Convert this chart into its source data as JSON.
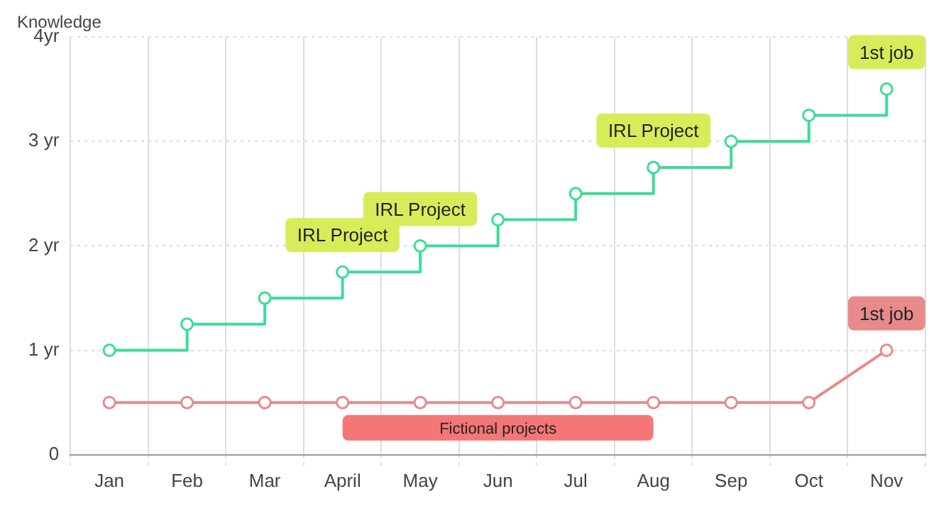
{
  "chart_data": {
    "type": "step",
    "ylabel": "Knowledge",
    "categories": [
      "Jan",
      "Feb",
      "Mar",
      "April",
      "May",
      "Jun",
      "Jul",
      "Aug",
      "Sep",
      "Oct",
      "Nov"
    ],
    "series": [
      {
        "color": "#3ddc97",
        "values": [
          1,
          1.25,
          1.5,
          1.75,
          2,
          2.25,
          2.5,
          2.75,
          3,
          3.25,
          3.5
        ]
      },
      {
        "type": "line",
        "color": "#e88a8a",
        "values": [
          0.5,
          0.5,
          0.5,
          0.5,
          0.5,
          0.5,
          0.5,
          0.5,
          0.5,
          0.5,
          1
        ]
      }
    ],
    "ylim": [
      0,
      4
    ],
    "yticks": [
      0,
      {
        "value": 1,
        "label": "1 yr"
      },
      {
        "value": 2,
        "label": "2 yr"
      },
      {
        "value": 3,
        "label": "3 yr"
      },
      {
        "value": 4,
        "label": "4yr"
      }
    ],
    "grid": true,
    "legend": false,
    "marker": "circle",
    "bands": [
      {
        "axis": "x",
        "from": "April",
        "to": "Aug",
        "label": "Fictional projects",
        "color": "#f47676"
      }
    ],
    "annotations": [
      {
        "text": "IRL Project",
        "x": "April",
        "y": 1.75
      },
      {
        "text": "IRL Project",
        "x": "May",
        "y": 2
      },
      {
        "text": "IRL Project",
        "x": "Aug",
        "y": 2.75
      },
      {
        "text": "1st job",
        "x": "Nov",
        "y": 3.5
      },
      {
        "text": "1st job",
        "x": "Nov",
        "y": 1
      }
    ]
  }
}
